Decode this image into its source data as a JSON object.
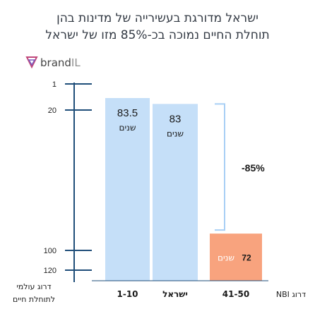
{
  "title": {
    "line1": "ישראל מדורגת בעשירייה של מדינות בהן",
    "line2": "תוחלת החיים נמוכה בכ-85% מזו של ישראל"
  },
  "logo": {
    "brand": "brand",
    "suffix": "IL"
  },
  "colors": {
    "bar": "#c5dff8",
    "highlight": "#f8a37e",
    "axis": "#1f4e79",
    "bracket": "#a8cff5"
  },
  "chart_data": {
    "type": "bar",
    "categories": [
      "1-10",
      "ישראל",
      "41-50"
    ],
    "series": [
      {
        "values": [
          83.5,
          83,
          72
        ],
        "value_labels": [
          "83.5",
          "83",
          "72"
        ],
        "unit_labels": [
          "שנים",
          "שנים",
          "שנים"
        ]
      }
    ],
    "y_axis": {
      "ticks": [
        1,
        20,
        100,
        120
      ],
      "title_line1": "דרוג עולמי",
      "title_line2": "לתוחלת חיים"
    },
    "x_axis_label": "דרוג NBI",
    "annotation": "-85%"
  }
}
